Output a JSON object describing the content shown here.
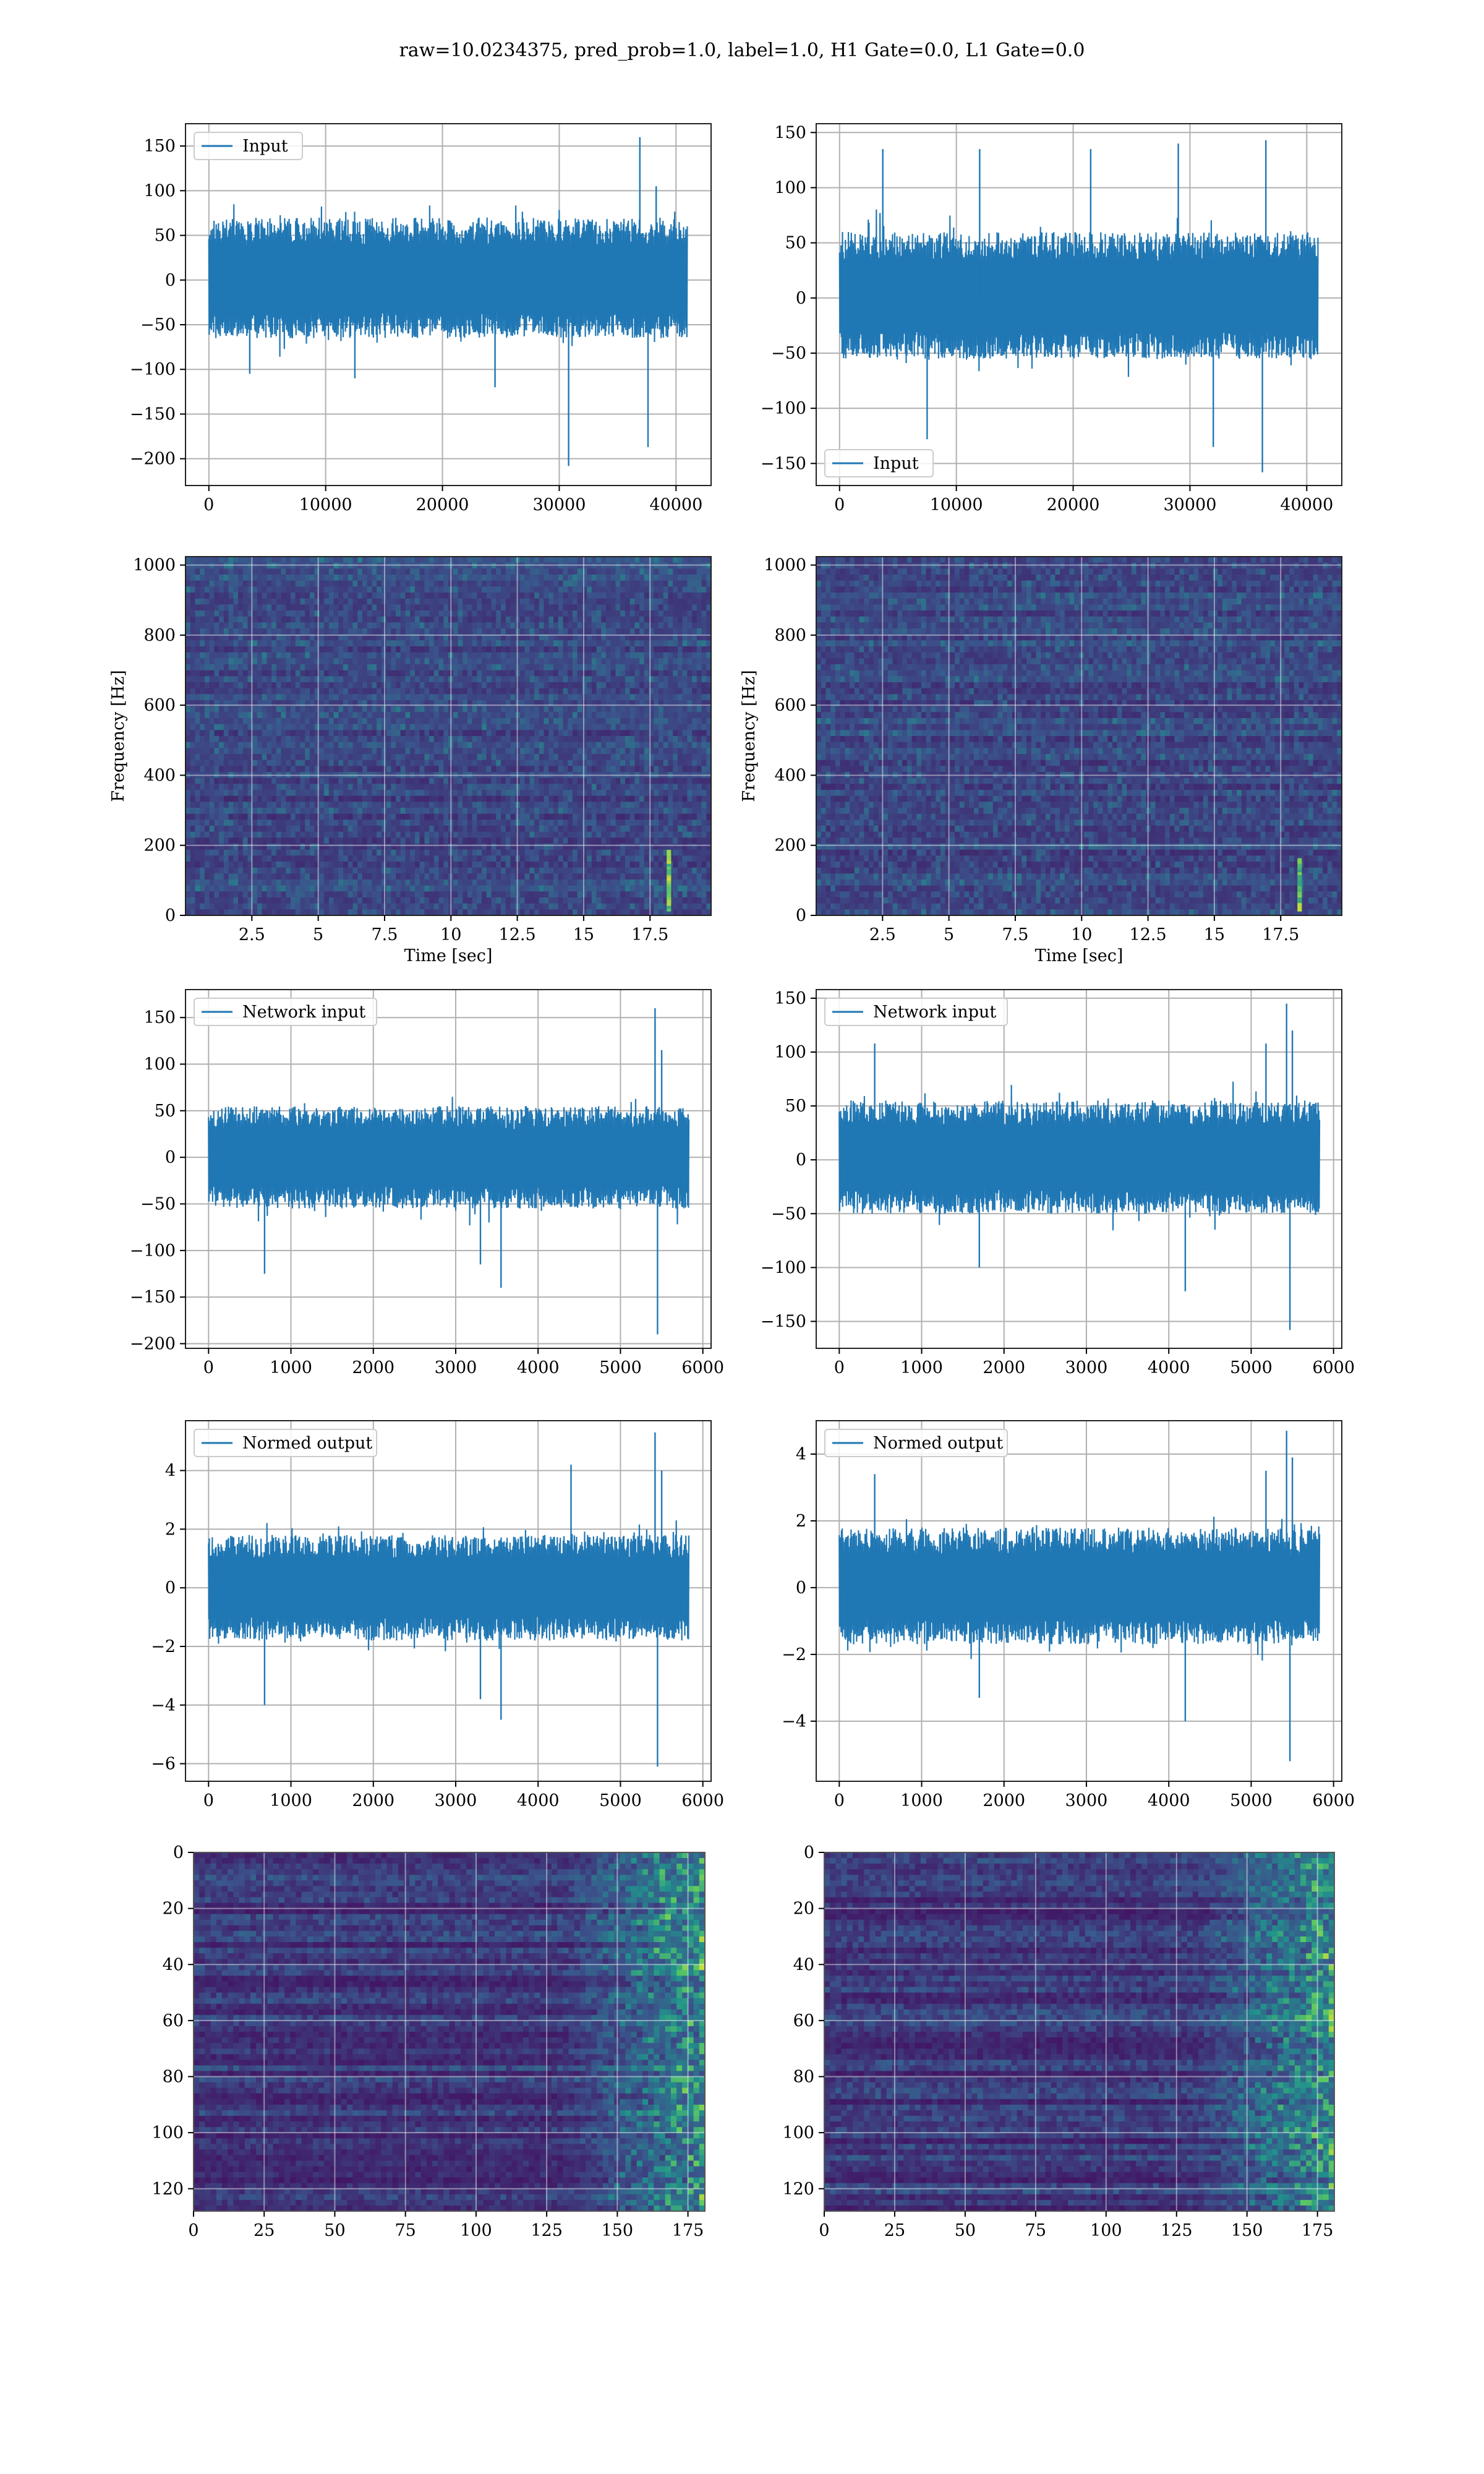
{
  "figure": {
    "title": "raw=10.0234375, pred_prob=1.0, label=1.0, H1 Gate=0.0, L1 Gate=0.0"
  },
  "colors": {
    "series": "#1f77b4",
    "grid": "#b0b0b0",
    "viridis_low": "#440154",
    "viridis_mid": "#21918c",
    "viridis_high": "#fde725"
  },
  "chart_data": [
    {
      "id": "input-h1",
      "type": "line",
      "legend": "Input",
      "legend_loc": "upper left",
      "xlim": [
        -2000,
        43000
      ],
      "ylim": [
        -230,
        175
      ],
      "xticks": [
        0,
        10000,
        20000,
        30000,
        40000
      ],
      "yticks": [
        -200,
        -150,
        -100,
        -50,
        0,
        50,
        100,
        150
      ],
      "x_range": [
        0,
        40960
      ],
      "band": [
        -65,
        70
      ],
      "grid": true,
      "spikes": [
        [
          3500,
          -105
        ],
        [
          12500,
          -110
        ],
        [
          24500,
          -120
        ],
        [
          30800,
          -208
        ],
        [
          36900,
          160
        ],
        [
          37600,
          -187
        ],
        [
          38300,
          105
        ]
      ]
    },
    {
      "id": "input-l1",
      "type": "line",
      "legend": "Input",
      "legend_loc": "lower left",
      "xlim": [
        -2000,
        43000
      ],
      "ylim": [
        -170,
        158
      ],
      "xticks": [
        0,
        10000,
        20000,
        30000,
        40000
      ],
      "yticks": [
        -150,
        -100,
        -50,
        0,
        50,
        100,
        150
      ],
      "x_range": [
        0,
        40960
      ],
      "band": [
        -55,
        60
      ],
      "grid": true,
      "spikes": [
        [
          3700,
          135
        ],
        [
          7500,
          -128
        ],
        [
          12000,
          135
        ],
        [
          21500,
          135
        ],
        [
          29000,
          140
        ],
        [
          32000,
          -135
        ],
        [
          36200,
          -158
        ],
        [
          36500,
          143
        ]
      ]
    },
    {
      "id": "spectrogram-h1",
      "type": "heatmap",
      "xlabel": "Time [sec]",
      "ylabel": "Frequency [Hz]",
      "xlim": [
        0,
        19.8
      ],
      "ylim": [
        0,
        1024
      ],
      "xticks": [
        2.5,
        5.0,
        7.5,
        10.0,
        12.5,
        15.0,
        17.5
      ],
      "yticks": [
        0,
        200,
        400,
        600,
        800,
        1000
      ],
      "grid": true,
      "chirp": {
        "t": 18.2,
        "f_low": 20,
        "f_high": 180
      }
    },
    {
      "id": "spectrogram-l1",
      "type": "heatmap",
      "xlabel": "Time [sec]",
      "ylabel": "Frequency [Hz]",
      "xlim": [
        0,
        19.8
      ],
      "ylim": [
        0,
        1024
      ],
      "xticks": [
        2.5,
        5.0,
        7.5,
        10.0,
        12.5,
        15.0,
        17.5
      ],
      "yticks": [
        0,
        200,
        400,
        600,
        800,
        1000
      ],
      "grid": true,
      "chirp": {
        "t": 18.2,
        "f_low": 20,
        "f_high": 160
      }
    },
    {
      "id": "network-input-h1",
      "type": "line",
      "legend": "Network input",
      "legend_loc": "upper left",
      "xlim": [
        -280,
        6100
      ],
      "ylim": [
        -205,
        180
      ],
      "xticks": [
        0,
        1000,
        2000,
        3000,
        4000,
        5000,
        6000
      ],
      "yticks": [
        -200,
        -150,
        -100,
        -50,
        0,
        50,
        100,
        150
      ],
      "x_range": [
        0,
        5830
      ],
      "band": [
        -55,
        55
      ],
      "grid": true,
      "spikes": [
        [
          680,
          -125
        ],
        [
          3300,
          -115
        ],
        [
          3550,
          -140
        ],
        [
          5420,
          160
        ],
        [
          5450,
          -190
        ],
        [
          5500,
          115
        ]
      ]
    },
    {
      "id": "network-input-l1",
      "type": "line",
      "legend": "Network input",
      "legend_loc": "upper left",
      "xlim": [
        -280,
        6100
      ],
      "ylim": [
        -175,
        158
      ],
      "xticks": [
        0,
        1000,
        2000,
        3000,
        4000,
        5000,
        6000
      ],
      "yticks": [
        -150,
        -100,
        -50,
        0,
        50,
        100,
        150
      ],
      "x_range": [
        0,
        5830
      ],
      "band": [
        -50,
        55
      ],
      "grid": true,
      "spikes": [
        [
          430,
          108
        ],
        [
          1700,
          -100
        ],
        [
          4200,
          -122
        ],
        [
          5180,
          108
        ],
        [
          5430,
          145
        ],
        [
          5470,
          -158
        ],
        [
          5500,
          120
        ]
      ]
    },
    {
      "id": "normed-output-h1",
      "type": "line",
      "legend": "Normed output",
      "legend_loc": "upper left",
      "xlim": [
        -280,
        6100
      ],
      "ylim": [
        -6.6,
        5.7
      ],
      "xticks": [
        0,
        1000,
        2000,
        3000,
        4000,
        5000,
        6000
      ],
      "yticks": [
        -6,
        -4,
        -2,
        0,
        2,
        4
      ],
      "x_range": [
        0,
        5830
      ],
      "band": [
        -1.8,
        1.8
      ],
      "grid": true,
      "spikes": [
        [
          680,
          -4.0
        ],
        [
          3300,
          -3.8
        ],
        [
          3550,
          -4.5
        ],
        [
          4400,
          4.2
        ],
        [
          5420,
          5.3
        ],
        [
          5450,
          -6.1
        ],
        [
          5500,
          4.0
        ]
      ]
    },
    {
      "id": "normed-output-l1",
      "type": "line",
      "legend": "Normed output",
      "legend_loc": "upper left",
      "xlim": [
        -280,
        6100
      ],
      "ylim": [
        -5.8,
        5.0
      ],
      "xticks": [
        0,
        1000,
        2000,
        3000,
        4000,
        5000,
        6000
      ],
      "yticks": [
        -4,
        -2,
        0,
        2,
        4
      ],
      "x_range": [
        0,
        5830
      ],
      "band": [
        -1.7,
        1.8
      ],
      "grid": true,
      "spikes": [
        [
          430,
          3.4
        ],
        [
          1700,
          -3.3
        ],
        [
          4200,
          -4.0
        ],
        [
          5180,
          3.5
        ],
        [
          5430,
          4.7
        ],
        [
          5470,
          -5.2
        ],
        [
          5500,
          3.9
        ]
      ]
    },
    {
      "id": "activation-map-h1",
      "type": "heatmap",
      "xlim": [
        0,
        181
      ],
      "ylim": [
        128,
        0
      ],
      "xticks": [
        0,
        25,
        50,
        75,
        100,
        125,
        150,
        175
      ],
      "yticks": [
        0,
        20,
        40,
        60,
        80,
        100,
        120
      ],
      "grid": true,
      "active_from_x": 130
    },
    {
      "id": "activation-map-l1",
      "type": "heatmap",
      "xlim": [
        0,
        181
      ],
      "ylim": [
        128,
        0
      ],
      "xticks": [
        0,
        25,
        50,
        75,
        100,
        125,
        150,
        175
      ],
      "yticks": [
        0,
        20,
        40,
        60,
        80,
        100,
        120
      ],
      "grid": true,
      "active_from_x": 130
    }
  ]
}
